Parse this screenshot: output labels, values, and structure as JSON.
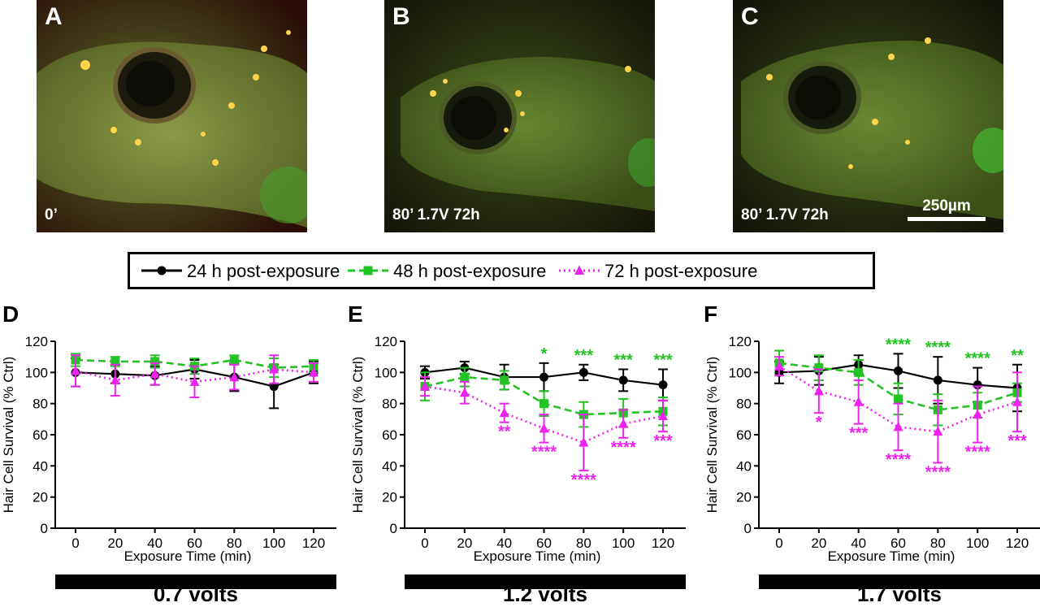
{
  "photos": [
    {
      "letter": "A",
      "caption": "0’"
    },
    {
      "letter": "B",
      "caption": "80’ 1.7V 72h"
    },
    {
      "letter": "C",
      "caption": "80’ 1.7V 72h",
      "scalebar": "250µm"
    }
  ],
  "legend": [
    {
      "label": "24 h post-exposure",
      "color": "#000000",
      "marker": "circle",
      "dash": "solid"
    },
    {
      "label": "48 h post-exposure",
      "color": "#22c322",
      "marker": "square",
      "dash": "dashed"
    },
    {
      "label": "72 h post-exposure",
      "color": "#ee22ee",
      "marker": "triangle",
      "dash": "dotted"
    }
  ],
  "chart_data": [
    {
      "panel": "D",
      "type": "line",
      "ylabel": "Hair Cell Survival (% Ctrl)",
      "xlabel": "Exposure Time (min)",
      "x": [
        0,
        20,
        40,
        60,
        80,
        100,
        120
      ],
      "ylim": [
        0,
        120
      ],
      "yticks": [
        0,
        20,
        40,
        60,
        80,
        100,
        120
      ],
      "voltage_label": "0.7 volts",
      "series": [
        {
          "name": "24 h post-exposure",
          "values": [
            100,
            99,
            98,
            102,
            97,
            91,
            100
          ],
          "errors": [
            9,
            6,
            6,
            6,
            9,
            14,
            7
          ]
        },
        {
          "name": "48 h post-exposure",
          "values": [
            108,
            107,
            107,
            104,
            108,
            103,
            104
          ],
          "errors": [
            4,
            3,
            4,
            5,
            3,
            6,
            4
          ]
        },
        {
          "name": "72 h post-exposure",
          "values": [
            101,
            95,
            99,
            94,
            97,
            102,
            100
          ],
          "errors": [
            10,
            10,
            7,
            10,
            8,
            9,
            6
          ]
        }
      ],
      "significance": []
    },
    {
      "panel": "E",
      "type": "line",
      "ylabel": "Hair Cell Survival (% Ctrl)",
      "xlabel": "Exposure Time (min)",
      "x": [
        0,
        20,
        40,
        60,
        80,
        100,
        120
      ],
      "ylim": [
        0,
        120
      ],
      "yticks": [
        0,
        20,
        40,
        60,
        80,
        100,
        120
      ],
      "voltage_label": "1.2 volts",
      "series": [
        {
          "name": "24 h post-exposure",
          "values": [
            100,
            103,
            97,
            97,
            100,
            95,
            92
          ],
          "errors": [
            4,
            4,
            8,
            9,
            5,
            7,
            10
          ]
        },
        {
          "name": "48 h post-exposure",
          "values": [
            91,
            97,
            95,
            80,
            73,
            74,
            75
          ],
          "errors": [
            9,
            6,
            6,
            8,
            8,
            9,
            9
          ]
        },
        {
          "name": "72 h post-exposure",
          "values": [
            91,
            87,
            74,
            64,
            55,
            67,
            72
          ],
          "errors": [
            6,
            7,
            6,
            9,
            18,
            9,
            10
          ]
        }
      ],
      "significance": [
        {
          "x": 60,
          "series": "48 h post-exposure",
          "text": "*",
          "position": "above"
        },
        {
          "x": 80,
          "series": "48 h post-exposure",
          "text": "***",
          "position": "above"
        },
        {
          "x": 100,
          "series": "48 h post-exposure",
          "text": "***",
          "position": "above"
        },
        {
          "x": 120,
          "series": "48 h post-exposure",
          "text": "***",
          "position": "above"
        },
        {
          "x": 40,
          "series": "72 h post-exposure",
          "text": "**",
          "position": "below"
        },
        {
          "x": 60,
          "series": "72 h post-exposure",
          "text": "****",
          "position": "below"
        },
        {
          "x": 80,
          "series": "72 h post-exposure",
          "text": "****",
          "position": "below"
        },
        {
          "x": 100,
          "series": "72 h post-exposure",
          "text": "****",
          "position": "below"
        },
        {
          "x": 120,
          "series": "72 h post-exposure",
          "text": "***",
          "position": "below"
        }
      ]
    },
    {
      "panel": "F",
      "type": "line",
      "ylabel": "Hair Cell Survival (% Ctrl)",
      "xlabel": "Exposure Time (min)",
      "x": [
        0,
        20,
        40,
        60,
        80,
        100,
        120
      ],
      "ylim": [
        0,
        120
      ],
      "yticks": [
        0,
        20,
        40,
        60,
        80,
        100,
        120
      ],
      "voltage_label": "1.7 volts",
      "series": [
        {
          "name": "24 h post-exposure",
          "values": [
            100,
            101,
            105,
            101,
            95,
            92,
            90
          ],
          "errors": [
            7,
            9,
            6,
            11,
            15,
            11,
            15
          ]
        },
        {
          "name": "48 h post-exposure",
          "values": [
            106,
            103,
            100,
            83,
            76,
            79,
            87
          ],
          "errors": [
            8,
            8,
            8,
            10,
            10,
            8,
            6
          ]
        },
        {
          "name": "72 h post-exposure",
          "values": [
            104,
            88,
            81,
            65,
            62,
            73,
            81
          ],
          "errors": [
            6,
            14,
            14,
            15,
            20,
            18,
            19
          ]
        }
      ],
      "significance": [
        {
          "x": 60,
          "series": "48 h post-exposure",
          "text": "****",
          "position": "above"
        },
        {
          "x": 80,
          "series": "48 h post-exposure",
          "text": "****",
          "position": "above"
        },
        {
          "x": 100,
          "series": "48 h post-exposure",
          "text": "****",
          "position": "above"
        },
        {
          "x": 120,
          "series": "48 h post-exposure",
          "text": "**",
          "position": "above"
        },
        {
          "x": 20,
          "series": "72 h post-exposure",
          "text": "*",
          "position": "below"
        },
        {
          "x": 40,
          "series": "72 h post-exposure",
          "text": "***",
          "position": "below"
        },
        {
          "x": 60,
          "series": "72 h post-exposure",
          "text": "****",
          "position": "below"
        },
        {
          "x": 80,
          "series": "72 h post-exposure",
          "text": "****",
          "position": "below"
        },
        {
          "x": 100,
          "series": "72 h post-exposure",
          "text": "****",
          "position": "below"
        },
        {
          "x": 120,
          "series": "72 h post-exposure",
          "text": "***",
          "position": "below"
        }
      ]
    }
  ]
}
